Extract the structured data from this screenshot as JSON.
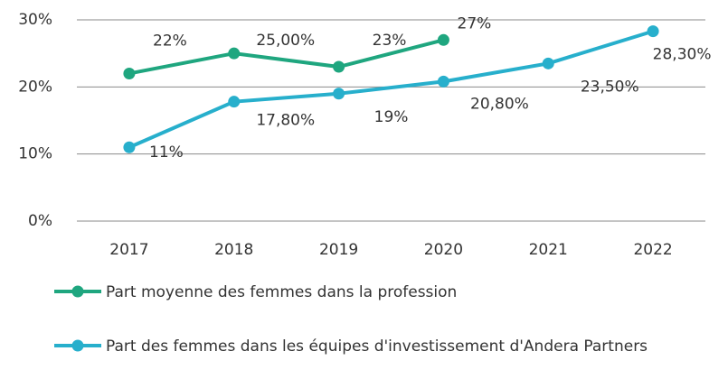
{
  "chart_data": {
    "type": "line",
    "categories": [
      "2017",
      "2018",
      "2019",
      "2020",
      "2021",
      "2022"
    ],
    "series": [
      {
        "name": "Part moyenne des femmes dans la profession",
        "color": "#1fa67f",
        "values": [
          22,
          25,
          23,
          27,
          null,
          null
        ],
        "value_labels": [
          "22%",
          "25,00%",
          "23%",
          "27%",
          null,
          null
        ]
      },
      {
        "name": "Part des femmes dans les équipes d'investissement d'Andera Partners",
        "color": "#27afcc",
        "values": [
          11,
          17.8,
          19,
          20.8,
          23.5,
          28.3
        ],
        "value_labels": [
          "11%",
          "17,80%",
          "19%",
          "20,80%",
          "23,50%",
          "28,30%"
        ]
      }
    ],
    "ylim": [
      0,
      30
    ],
    "yticks": [
      {
        "value": 0,
        "label": "0%"
      },
      {
        "value": 10,
        "label": "10%"
      },
      {
        "value": 20,
        "label": "20%"
      },
      {
        "value": 30,
        "label": "30%"
      }
    ],
    "grid": true
  }
}
